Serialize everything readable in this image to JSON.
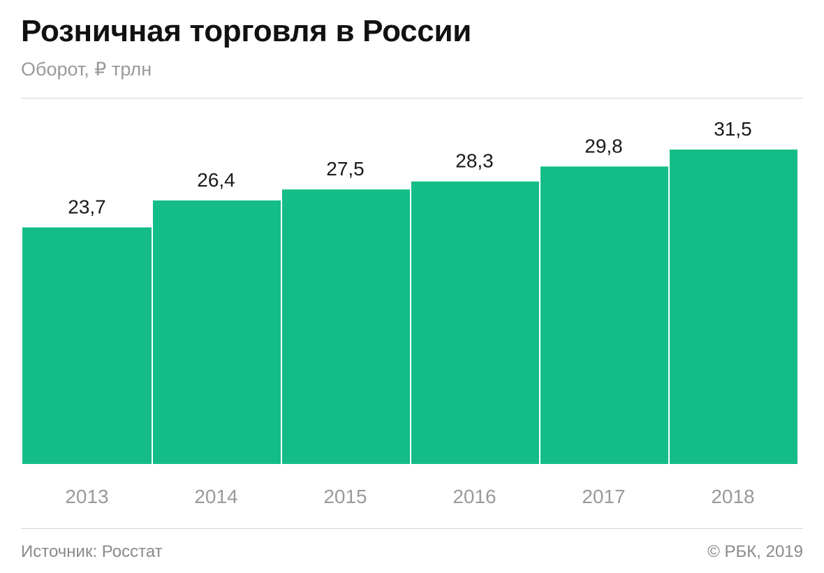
{
  "header": {
    "title": "Розничная торговля в России",
    "subtitle": "Оборот, ₽ трлн"
  },
  "footer": {
    "source": "Источник: Росстат",
    "credit": "© РБК, 2019"
  },
  "colors": {
    "bar": "#14bd87",
    "title": "#111111",
    "muted": "#9a9a9a",
    "rule": "#d6d6d6"
  },
  "chart_data": {
    "type": "bar",
    "title": "Розничная торговля в России",
    "subtitle": "Оборот, ₽ трлн",
    "categories": [
      "2013",
      "2014",
      "2015",
      "2016",
      "2017",
      "2018"
    ],
    "values": [
      23.7,
      26.4,
      27.5,
      28.3,
      29.8,
      31.5
    ],
    "value_labels": [
      "23,7",
      "26,4",
      "27,5",
      "28,3",
      "29,8",
      "31,5"
    ],
    "xlabel": "",
    "ylabel": "",
    "ylim": [
      0,
      31.5
    ],
    "grid": false,
    "legend": "none"
  }
}
